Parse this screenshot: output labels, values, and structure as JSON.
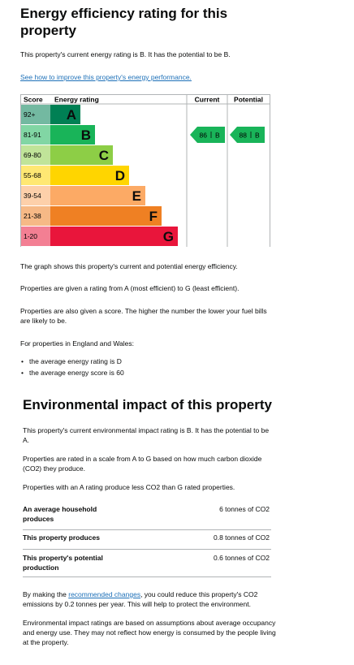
{
  "energy": {
    "title": "Energy efficiency rating for this property",
    "intro": "This property's current energy rating is B. It has the potential to be B.",
    "link": "See how to improve this property's energy performance.",
    "chart": {
      "headers": {
        "score": "Score",
        "rating": "Energy rating",
        "current": "Current",
        "potential": "Potential"
      },
      "bands": [
        {
          "score": "92+",
          "letter": "A",
          "color": "#008054"
        },
        {
          "score": "81-91",
          "letter": "B",
          "color": "#19b459"
        },
        {
          "score": "69-80",
          "letter": "C",
          "color": "#8dce46"
        },
        {
          "score": "55-68",
          "letter": "D",
          "color": "#ffd500"
        },
        {
          "score": "39-54",
          "letter": "E",
          "color": "#fcaa65"
        },
        {
          "score": "21-38",
          "letter": "F",
          "color": "#ef8023"
        },
        {
          "score": "1-20",
          "letter": "G",
          "color": "#e9153b"
        }
      ],
      "current": {
        "score": 86,
        "band": "B"
      },
      "potential": {
        "score": 88,
        "band": "B"
      }
    },
    "paragraphs": [
      "The graph shows this property's current and potential energy efficiency.",
      "Properties are given a rating from A (most efficient) to G (least efficient).",
      "Properties are also given a score. The higher the number the lower your fuel bills are likely to be.",
      "For properties in England and Wales:"
    ],
    "bullets": [
      "the average energy rating is D",
      "the average energy score is 60"
    ]
  },
  "environment": {
    "title": "Environmental impact of this property",
    "paragraphs": [
      "This property's current environmental impact rating is B. It has the potential to be A.",
      "Properties are rated in a scale from A to G based on how much carbon dioxide (CO2) they produce.",
      "Properties with an A rating produce less CO2 than G rated properties."
    ],
    "table": [
      [
        "An average household produces",
        "6 tonnes of CO2"
      ],
      [
        "This property produces",
        "0.8 tonnes of CO2"
      ],
      [
        "This property's potential production",
        "0.6 tonnes of CO2"
      ]
    ],
    "changes": {
      "before": "By making the ",
      "link": "recommended changes",
      "after": ", you could reduce this property's CO2 emissions by 0.2 tonnes per year. This will help to protect the environment."
    },
    "note": "Environmental impact ratings are based on assumptions about average occupancy and energy use. They may not reflect how energy is consumed by the people living at the property."
  }
}
